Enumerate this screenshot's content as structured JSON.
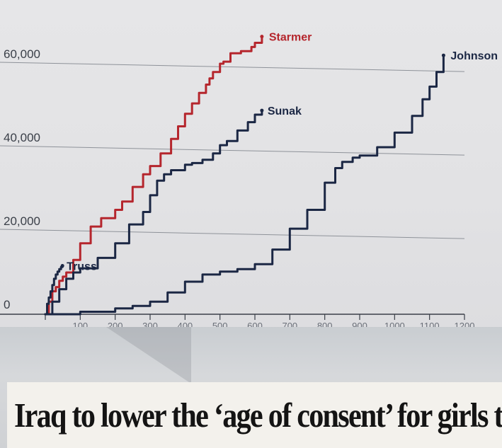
{
  "chart_data": {
    "type": "line",
    "title": "",
    "xlabel": "",
    "ylabel": "",
    "ylim": [
      0,
      62000
    ],
    "xlim": [
      0,
      1200
    ],
    "y_ticks": [
      {
        "value": 0,
        "label": "0"
      },
      {
        "value": 20000,
        "label": "20,000"
      },
      {
        "value": 40000,
        "label": "40,000"
      },
      {
        "value": 60000,
        "label": "60,000"
      }
    ],
    "x_ticks": [
      0,
      100,
      200,
      300,
      400,
      500,
      600,
      700,
      800,
      900,
      1000,
      1100,
      1200
    ],
    "x_tick_labels": [
      "",
      "100",
      "200",
      "300",
      "400",
      "500",
      "600",
      "700",
      "800",
      "900",
      "1000",
      "1100",
      "1200"
    ],
    "series": [
      {
        "name": "Starmer",
        "color": "#b5262d",
        "x": [
          0,
          10,
          20,
          30,
          40,
          50,
          60,
          80,
          100,
          130,
          160,
          200,
          220,
          250,
          280,
          300,
          330,
          360,
          380,
          400,
          420,
          440,
          460,
          470,
          480,
          500,
          510,
          530,
          560,
          590,
          600,
          620
        ],
        "y": [
          0,
          3000,
          5500,
          6500,
          8000,
          9000,
          10000,
          13000,
          17000,
          21000,
          23000,
          25000,
          27000,
          30500,
          33500,
          35500,
          38500,
          42000,
          45000,
          48000,
          50500,
          53000,
          55000,
          56500,
          58000,
          60000,
          60500,
          62500,
          63000,
          64000,
          65000,
          66500
        ]
      },
      {
        "name": "Sunak",
        "color": "#1b2744",
        "x": [
          0,
          20,
          40,
          60,
          80,
          100,
          150,
          200,
          240,
          280,
          300,
          320,
          340,
          360,
          400,
          420,
          450,
          480,
          500,
          520,
          550,
          580,
          600,
          620
        ],
        "y": [
          0,
          3000,
          6000,
          8500,
          10000,
          11000,
          13500,
          17000,
          21500,
          24500,
          28500,
          32000,
          33500,
          34500,
          35800,
          36200,
          37000,
          38500,
          40500,
          41500,
          44000,
          46000,
          47800,
          48800
        ]
      },
      {
        "name": "Truss",
        "color": "#1b2744",
        "x": [
          0,
          5,
          10,
          15,
          20,
          25,
          30,
          35,
          40,
          45,
          49
        ],
        "y": [
          0,
          2500,
          4000,
          5500,
          7000,
          8500,
          9500,
          10200,
          10800,
          11300,
          11600
        ]
      },
      {
        "name": "Johnson",
        "color": "#1b2744",
        "x": [
          0,
          100,
          200,
          250,
          300,
          350,
          400,
          450,
          500,
          550,
          600,
          650,
          700,
          750,
          800,
          830,
          850,
          880,
          900,
          950,
          1000,
          1050,
          1080,
          1100,
          1120,
          1140
        ],
        "y": [
          0,
          600,
          1400,
          2000,
          3000,
          5200,
          7800,
          9500,
          10200,
          10800,
          12000,
          15500,
          20500,
          25000,
          31500,
          35000,
          36500,
          37500,
          38000,
          40000,
          43500,
          47500,
          51500,
          54500,
          58000,
          62000
        ]
      }
    ],
    "series_labels": [
      "Starmer",
      "Sunak",
      "Truss",
      "Johnson"
    ]
  },
  "headline": "Iraq to lower the ‘age of consent’ for girls to nine"
}
